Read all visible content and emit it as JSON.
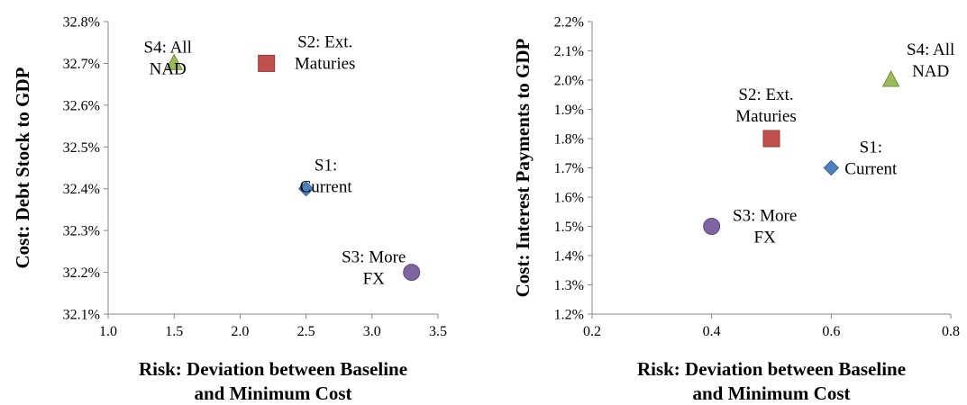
{
  "colors": {
    "diamond": "#4F81BD",
    "square": "#C0504D",
    "circle": "#8064A2",
    "triangle": "#9BBB59",
    "axis": "#888888"
  },
  "chart_data": [
    {
      "type": "scatter",
      "xlabel": [
        "Risk: Deviation between Baseline",
        "and Minimum Cost"
      ],
      "ylabel": "Cost: Debt Stock to GDP",
      "xlim": [
        1.0,
        3.5
      ],
      "ylim": [
        32.1,
        32.8
      ],
      "xticks": [
        "1.0",
        "1.5",
        "2.0",
        "2.5",
        "3.0",
        "3.5"
      ],
      "yticks": [
        "32.1%",
        "32.2%",
        "32.3%",
        "32.4%",
        "32.5%",
        "32.6%",
        "32.7%",
        "32.8%"
      ],
      "grid": false,
      "legend": "none",
      "points": [
        {
          "label": [
            "S1:",
            "Current"
          ],
          "x": 2.5,
          "y": 32.4,
          "marker": "diamond"
        },
        {
          "label": [
            "S2: Ext.",
            "Maturies"
          ],
          "x": 2.2,
          "y": 32.7,
          "marker": "square"
        },
        {
          "label": [
            "S3: More",
            "FX"
          ],
          "x": 3.3,
          "y": 32.2,
          "marker": "circle"
        },
        {
          "label": [
            "S4: All",
            "NAD"
          ],
          "x": 1.5,
          "y": 32.7,
          "marker": "triangle"
        }
      ]
    },
    {
      "type": "scatter",
      "xlabel": [
        "Risk: Deviation between Baseline",
        "and Minimum Cost"
      ],
      "ylabel": "Cost: Interest Payments to GDP",
      "xlim": [
        0.2,
        0.8
      ],
      "ylim": [
        1.2,
        2.2
      ],
      "xticks": [
        "0.2",
        "0.4",
        "0.6",
        "0.8"
      ],
      "yticks": [
        "1.2%",
        "1.3%",
        "1.4%",
        "1.5%",
        "1.6%",
        "1.7%",
        "1.8%",
        "1.9%",
        "2.0%",
        "2.1%",
        "2.2%"
      ],
      "grid": false,
      "legend": "none",
      "points": [
        {
          "label": [
            "S1:",
            "Current"
          ],
          "x": 0.6,
          "y": 1.7,
          "marker": "diamond"
        },
        {
          "label": [
            "S2: Ext.",
            "Maturies"
          ],
          "x": 0.5,
          "y": 1.8,
          "marker": "square"
        },
        {
          "label": [
            "S3: More",
            "FX"
          ],
          "x": 0.4,
          "y": 1.5,
          "marker": "circle"
        },
        {
          "label": [
            "S4: All",
            "NAD"
          ],
          "x": 0.7,
          "y": 2.0,
          "marker": "triangle"
        }
      ]
    }
  ]
}
